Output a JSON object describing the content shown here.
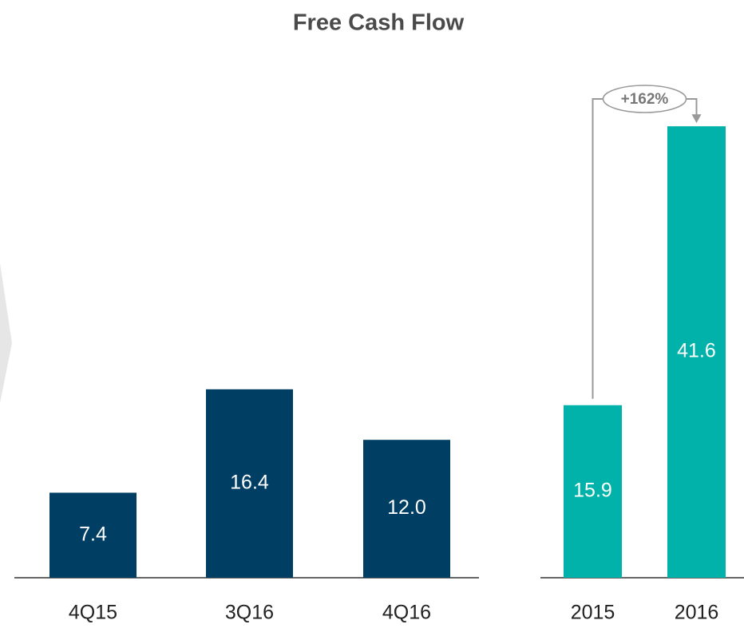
{
  "title": "Free Cash Flow",
  "chart_data": [
    {
      "type": "bar",
      "categories": [
        "4Q15",
        "3Q16",
        "4Q16"
      ],
      "values": [
        7.4,
        16.4,
        12.0
      ],
      "value_labels": [
        "7.4",
        "16.4",
        "12.0"
      ],
      "color": "#003f63"
    },
    {
      "type": "bar",
      "categories": [
        "2015",
        "2016"
      ],
      "values": [
        15.9,
        41.6
      ],
      "value_labels": [
        "15.9",
        "41.6"
      ],
      "color": "#00b2a9",
      "annotation": "+162%"
    }
  ]
}
